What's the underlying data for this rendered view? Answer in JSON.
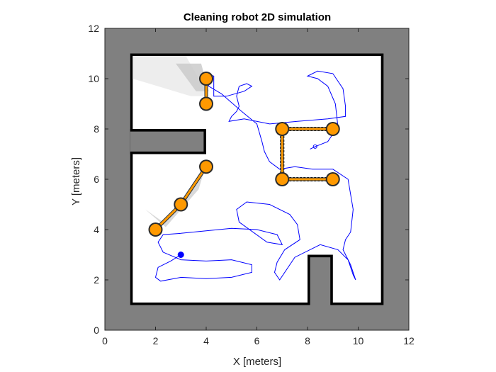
{
  "chart_data": {
    "type": "scatter",
    "title": "Cleaning robot 2D simulation",
    "xlabel": "X [meters]",
    "ylabel": "Y [meters]",
    "xlim": [
      0,
      12
    ],
    "ylim": [
      0,
      12
    ],
    "xticks": [
      0,
      2,
      4,
      6,
      8,
      10,
      12
    ],
    "yticks": [
      0,
      2,
      4,
      6,
      8,
      10,
      12
    ],
    "colors": {
      "unknown": "#808080",
      "free": "#ffffff",
      "occupied": "#000000",
      "edge": "#1f2d3d",
      "node": "#ff9900",
      "path": "#0000ff"
    },
    "map": {
      "outer_wall": [
        [
          1,
          1
        ],
        [
          11,
          1
        ],
        [
          11,
          11
        ],
        [
          1,
          11
        ]
      ],
      "left_notch": [
        [
          1,
          7
        ],
        [
          4,
          7
        ],
        [
          4,
          8
        ],
        [
          1,
          8
        ]
      ],
      "bottom_notch": [
        [
          8,
          1
        ],
        [
          9,
          1
        ],
        [
          9,
          3
        ],
        [
          8,
          3
        ]
      ],
      "obstacle": [
        [
          7,
          6
        ],
        [
          9,
          6
        ],
        [
          7,
          8
        ],
        [
          9,
          8
        ]
      ]
    },
    "graph_edges": [
      [
        [
          4,
          10
        ],
        [
          4,
          9
        ]
      ],
      [
        [
          2,
          4
        ],
        [
          3,
          5
        ]
      ],
      [
        [
          3,
          5
        ],
        [
          4,
          6.5
        ]
      ],
      [
        [
          7,
          8
        ],
        [
          9,
          8
        ]
      ],
      [
        [
          7,
          8
        ],
        [
          7,
          6
        ]
      ],
      [
        [
          7,
          6
        ],
        [
          9,
          6
        ]
      ]
    ],
    "graph_nodes": [
      {
        "x": 4,
        "y": 10
      },
      {
        "x": 4,
        "y": 9
      },
      {
        "x": 2,
        "y": 4
      },
      {
        "x": 3,
        "y": 5
      },
      {
        "x": 4,
        "y": 6.5
      },
      {
        "x": 7,
        "y": 8
      },
      {
        "x": 9,
        "y": 8
      },
      {
        "x": 7,
        "y": 6
      },
      {
        "x": 9,
        "y": 6
      }
    ],
    "robot_start": {
      "x": 3,
      "y": 3
    },
    "trajectory": {
      "x": [
        3.0,
        2.6,
        2.1,
        2.0,
        2.2,
        3.0,
        4.0,
        5.0,
        5.8,
        5.8,
        5.0,
        4.0,
        3.0,
        2.3,
        2.1,
        2.3,
        3.0,
        4.0,
        5.0,
        6.0,
        6.8,
        7.0,
        6.4,
        5.3,
        5.2,
        5.6,
        6.5,
        7.3,
        7.6,
        7.7,
        7.1,
        6.8,
        6.7,
        6.9,
        7.5,
        8.5,
        9.2,
        9.6,
        9.8,
        9.9,
        9.7,
        9.4,
        9.5,
        9.7,
        9.8,
        9.6,
        9.0,
        8.2,
        7.5,
        6.9,
        6.5,
        6.3,
        6.2,
        6.0,
        5.4,
        4.6,
        4.1,
        4.0,
        4.3,
        4.3,
        4.3,
        4.8,
        5.5,
        5.8,
        5.6,
        5.3,
        5.2,
        5.3,
        5.2,
        5.0,
        4.9,
        5.5,
        6.5,
        7.6,
        8.8,
        9.5,
        9.5,
        9.4,
        9.0,
        8.4,
        8.0,
        8.4,
        8.8,
        9.1,
        9.2,
        8.8,
        8.3,
        8.1,
        8.3
      ],
      "y": [
        3.0,
        2.75,
        2.5,
        2.1,
        1.95,
        2.1,
        2.05,
        2.1,
        2.3,
        2.6,
        2.8,
        2.75,
        2.8,
        3.1,
        3.5,
        3.8,
        3.85,
        3.95,
        4.05,
        4.0,
        3.8,
        3.4,
        3.5,
        4.3,
        4.8,
        5.1,
        5.0,
        4.6,
        4.2,
        3.6,
        3.2,
        2.7,
        2.3,
        2.0,
        2.9,
        3.4,
        3.2,
        2.8,
        2.2,
        2.0,
        2.6,
        3.2,
        3.6,
        3.9,
        4.8,
        6.0,
        6.4,
        6.4,
        6.5,
        6.4,
        6.7,
        7.1,
        7.5,
        8.2,
        8.7,
        9.4,
        9.7,
        10.2,
        10.1,
        9.7,
        9.3,
        9.3,
        9.5,
        9.7,
        9.8,
        9.7,
        9.3,
        8.9,
        8.7,
        8.5,
        8.3,
        8.4,
        8.2,
        8.3,
        8.4,
        8.5,
        8.9,
        9.6,
        10.2,
        10.3,
        10.1,
        10.0,
        9.7,
        9.0,
        8.1,
        7.5,
        7.3,
        7.2,
        7.3
      ]
    }
  }
}
